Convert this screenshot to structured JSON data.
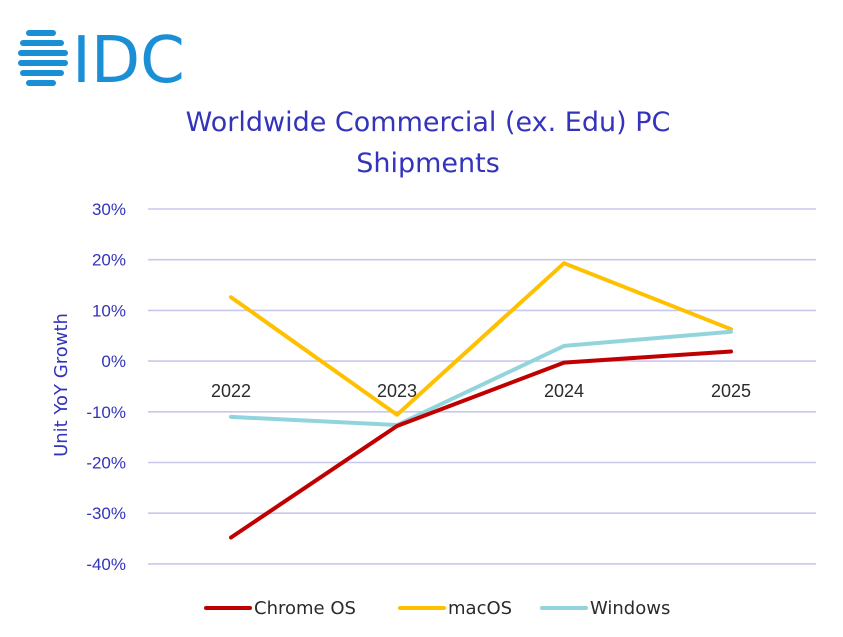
{
  "logo": {
    "text": "IDC",
    "color": "#1b8fd6"
  },
  "chart_data": {
    "type": "line",
    "title": "Worldwide Commercial (ex. Edu) PC Shipments",
    "title_lines": [
      "Worldwide Commercial (ex. Edu) PC",
      "Shipments"
    ],
    "xlabel": "",
    "ylabel": "Unit YoY Growth",
    "categories": [
      "2022",
      "2023",
      "2024",
      "2025"
    ],
    "y_ticks": [
      {
        "value": 30,
        "label": "30%"
      },
      {
        "value": 20,
        "label": "20%"
      },
      {
        "value": 10,
        "label": "10%"
      },
      {
        "value": 0,
        "label": "0%"
      },
      {
        "value": -10,
        "label": "-10%"
      },
      {
        "value": -20,
        "label": "-20%"
      },
      {
        "value": -30,
        "label": "-30%"
      },
      {
        "value": -40,
        "label": "-40%"
      }
    ],
    "ylim": [
      -40,
      30
    ],
    "grid": true,
    "legend_position": "bottom",
    "series": [
      {
        "name": "Chrome OS",
        "color": "#c00000",
        "values": [
          -34.8,
          -12.8,
          -0.3,
          1.9
        ]
      },
      {
        "name": "macOS",
        "color": "#ffc000",
        "values": [
          12.6,
          -10.6,
          19.3,
          6.3
        ]
      },
      {
        "name": "Windows",
        "color": "#92d4dc",
        "values": [
          -11.0,
          -12.6,
          3.0,
          5.8
        ]
      }
    ],
    "colors": {
      "title": "#3333bb",
      "axis_text": "#3333bb",
      "gridline": "#c8c8ee",
      "category_text": "#2b2b2b"
    }
  }
}
